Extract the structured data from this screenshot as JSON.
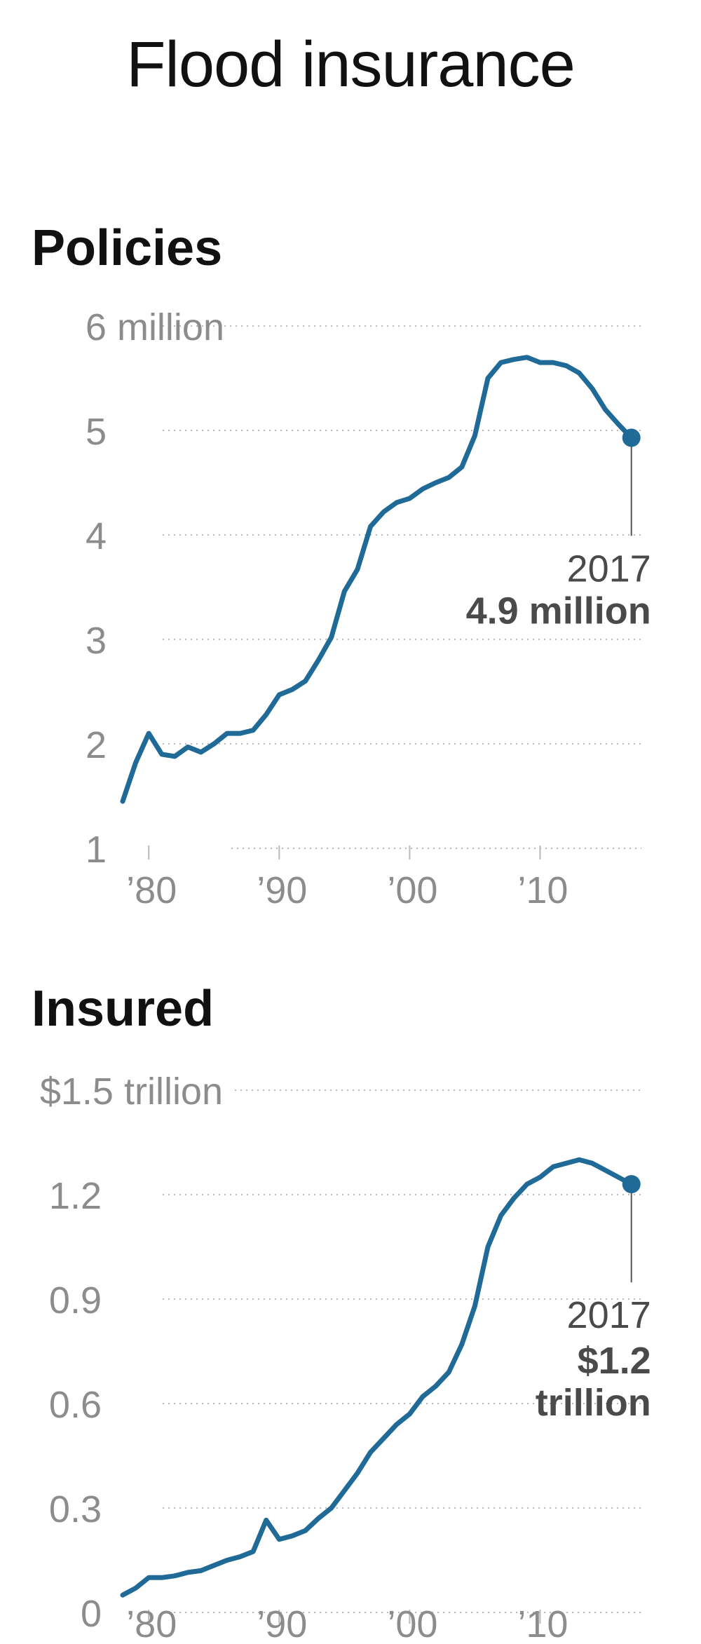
{
  "title": "Flood insurance",
  "colors": {
    "line": "#1f6a96",
    "tick_text": "#8c8c8c",
    "grid": "#b9b9b9",
    "annotation_text": "#4a4a4a",
    "heading": "#111111"
  },
  "chart_data": [
    {
      "type": "line",
      "title": "Policies",
      "xlabel": "",
      "ylabel": "",
      "xlim": [
        1978,
        2017.5
      ],
      "ylim": [
        1,
        6
      ],
      "y_ticks": [
        1,
        2,
        3,
        4,
        5,
        6
      ],
      "y_tick_labels": [
        "1",
        "2",
        "3",
        "4",
        "5",
        "6 million"
      ],
      "x_ticks": [
        1980,
        1990,
        2000,
        2010
      ],
      "x_tick_labels": [
        "’80",
        "’90",
        "’00",
        "’10"
      ],
      "grid": true,
      "series": [
        {
          "name": "Policies",
          "x": [
            1978,
            1979,
            1980,
            1981,
            1982,
            1983,
            1984,
            1985,
            1986,
            1987,
            1988,
            1989,
            1990,
            1991,
            1992,
            1993,
            1994,
            1995,
            1996,
            1997,
            1998,
            1999,
            2000,
            2001,
            2002,
            2003,
            2004,
            2005,
            2006,
            2007,
            2008,
            2009,
            2010,
            2011,
            2012,
            2013,
            2014,
            2015,
            2016,
            2017
          ],
          "values": [
            1.45,
            1.82,
            2.1,
            1.9,
            1.88,
            1.97,
            1.92,
            2.0,
            2.1,
            2.1,
            2.13,
            2.28,
            2.47,
            2.52,
            2.6,
            2.8,
            3.02,
            3.46,
            3.67,
            4.08,
            4.22,
            4.31,
            4.35,
            4.44,
            4.5,
            4.55,
            4.65,
            4.95,
            5.5,
            5.65,
            5.68,
            5.7,
            5.65,
            5.65,
            5.62,
            5.55,
            5.4,
            5.2,
            5.06,
            4.93
          ]
        }
      ],
      "annotation": {
        "year": "2017",
        "value_label": "4.9 million",
        "x": 2017,
        "y": 4.93
      }
    },
    {
      "type": "line",
      "title": "Insured",
      "xlabel": "",
      "ylabel": "",
      "xlim": [
        1978,
        2017.5
      ],
      "ylim": [
        0,
        1.5
      ],
      "y_ticks": [
        0,
        0.3,
        0.6,
        0.9,
        1.2,
        1.5
      ],
      "y_tick_labels": [
        "0",
        "0.3",
        "0.6",
        "0.9",
        "1.2",
        "$1.5 trillion"
      ],
      "x_ticks": [
        1980,
        1990,
        2000,
        2010
      ],
      "x_tick_labels": [
        "’80",
        "’90",
        "’00",
        "’10"
      ],
      "grid": true,
      "series": [
        {
          "name": "Insured",
          "x": [
            1978,
            1979,
            1980,
            1981,
            1982,
            1983,
            1984,
            1985,
            1986,
            1987,
            1988,
            1989,
            1990,
            1991,
            1992,
            1993,
            1994,
            1995,
            1996,
            1997,
            1998,
            1999,
            2000,
            2001,
            2002,
            2003,
            2004,
            2005,
            2006,
            2007,
            2008,
            2009,
            2010,
            2011,
            2012,
            2013,
            2014,
            2015,
            2016,
            2017
          ],
          "values": [
            0.05,
            0.07,
            0.1,
            0.1,
            0.105,
            0.115,
            0.12,
            0.135,
            0.15,
            0.16,
            0.175,
            0.265,
            0.21,
            0.22,
            0.235,
            0.27,
            0.3,
            0.35,
            0.4,
            0.46,
            0.5,
            0.54,
            0.57,
            0.62,
            0.65,
            0.69,
            0.77,
            0.88,
            1.05,
            1.14,
            1.19,
            1.23,
            1.25,
            1.28,
            1.29,
            1.3,
            1.29,
            1.27,
            1.25,
            1.23
          ]
        }
      ],
      "annotation": {
        "year": "2017",
        "value_label_line1": "$1.2",
        "value_label_line2": "trillion",
        "x": 2017,
        "y": 1.23
      }
    }
  ]
}
